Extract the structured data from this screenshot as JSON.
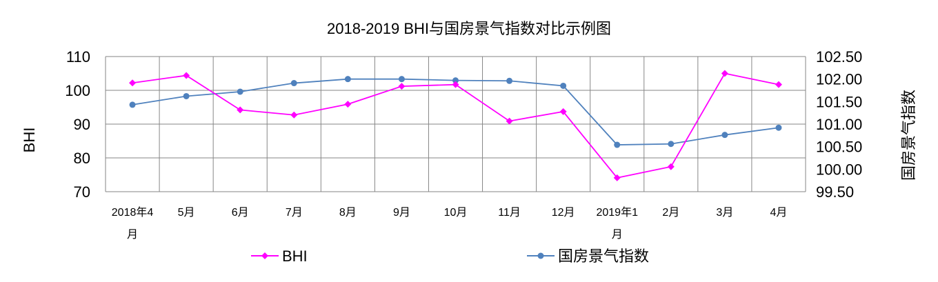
{
  "chart_data": {
    "type": "line",
    "title": "2018-2019 BHI与国房景气指数对比示例图",
    "ylabel_left": "BHI",
    "ylabel_right": "国房景气指数",
    "categories": [
      [
        "2018年4",
        "月"
      ],
      [
        "5月"
      ],
      [
        "6月"
      ],
      [
        "7月"
      ],
      [
        "8月"
      ],
      [
        "9月"
      ],
      [
        "10月"
      ],
      [
        "11月"
      ],
      [
        "12月"
      ],
      [
        "2019年1",
        "月"
      ],
      [
        "2月"
      ],
      [
        "3月"
      ],
      [
        "4月"
      ]
    ],
    "ylim_left": [
      70,
      110
    ],
    "yticks_left": [
      "70",
      "80",
      "90",
      "100",
      "110"
    ],
    "ylim_right": [
      99.5,
      102.5
    ],
    "yticks_right": [
      "99.50",
      "100.00",
      "100.50",
      "101.00",
      "101.50",
      "102.00",
      "102.50"
    ],
    "grid": true,
    "legend_position": "bottom",
    "series": [
      {
        "name": "BHI",
        "axis": "left",
        "color": "#FF00FF",
        "marker": "diamond",
        "values": [
          102.2,
          104.4,
          94.2,
          92.7,
          95.9,
          101.2,
          101.7,
          90.9,
          93.7,
          74.1,
          77.4,
          105.0,
          101.7
        ]
      },
      {
        "name": "国房景气指数",
        "axis": "right",
        "color": "#4F81BD",
        "marker": "circle",
        "values": [
          101.43,
          101.62,
          101.72,
          101.91,
          102.0,
          102.0,
          101.97,
          101.96,
          101.85,
          100.54,
          100.56,
          100.76,
          100.92
        ]
      }
    ]
  }
}
